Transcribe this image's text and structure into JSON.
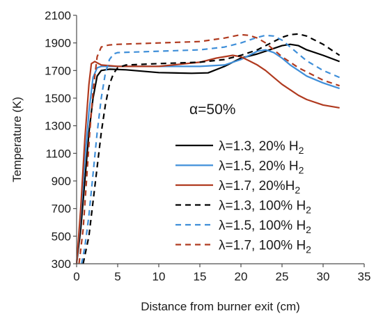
{
  "chart_data": {
    "type": "line",
    "xlabel": "Distance from burner exit (cm)",
    "ylabel": "Temperature (K)",
    "xlim": [
      0,
      35
    ],
    "ylim": [
      300,
      2100
    ],
    "xticks": [
      0,
      5,
      10,
      15,
      20,
      25,
      30,
      35
    ],
    "yticks": [
      300,
      500,
      700,
      900,
      1100,
      1300,
      1500,
      1700,
      1900,
      2100
    ],
    "grid": false,
    "legend_position": "center-right",
    "annotation": "α=50%",
    "series": [
      {
        "name": "λ=1.3, 20% H2",
        "legend": {
          "pre": "λ=1.3, 20% H",
          "sub": "2"
        },
        "color": "#000000",
        "dash": "solid",
        "x": [
          0,
          0.5,
          1,
          1.5,
          2,
          2.5,
          3,
          4,
          6,
          10,
          14,
          16,
          18,
          20,
          22,
          24,
          25,
          26,
          27,
          28,
          30,
          32
        ],
        "y": [
          300,
          550,
          900,
          1250,
          1500,
          1660,
          1700,
          1710,
          1705,
          1685,
          1680,
          1683,
          1730,
          1790,
          1820,
          1860,
          1880,
          1890,
          1880,
          1850,
          1810,
          1765
        ]
      },
      {
        "name": "λ=1.5, 20% H2",
        "legend": {
          "pre": "λ=1.5, 20% H",
          "sub": "2"
        },
        "color": "#3f8fd9",
        "dash": "solid",
        "x": [
          0,
          0.5,
          1,
          1.5,
          2,
          2.5,
          3,
          5,
          10,
          15,
          18,
          20,
          22,
          23,
          24,
          25,
          26,
          27,
          28,
          30,
          32
        ],
        "y": [
          300,
          650,
          1050,
          1400,
          1650,
          1720,
          1730,
          1730,
          1730,
          1730,
          1740,
          1780,
          1840,
          1850,
          1830,
          1790,
          1740,
          1700,
          1660,
          1610,
          1570
        ]
      },
      {
        "name": "λ=1.7, 20%H2",
        "legend": {
          "pre": "λ=1.7, 20%H",
          "sub": "2"
        },
        "color": "#b03a1f",
        "dash": "solid",
        "x": [
          0,
          0.5,
          1,
          1.5,
          1.8,
          2.2,
          3,
          5,
          10,
          15,
          17,
          19,
          20,
          21,
          22,
          23,
          24,
          25,
          26,
          27,
          28,
          30,
          32
        ],
        "y": [
          300,
          700,
          1200,
          1600,
          1750,
          1765,
          1740,
          1730,
          1730,
          1760,
          1790,
          1810,
          1800,
          1770,
          1740,
          1700,
          1650,
          1600,
          1560,
          1520,
          1490,
          1450,
          1430
        ]
      },
      {
        "name": "λ=1.3, 100% H2",
        "legend": {
          "pre": "λ=1.3, 100% H",
          "sub": "2"
        },
        "color": "#000000",
        "dash": "dashed",
        "x": [
          0.8,
          1.5,
          2,
          2.5,
          3,
          3.5,
          4,
          4.5,
          5,
          6,
          10,
          15,
          18,
          20,
          22,
          24,
          25,
          26,
          27,
          28,
          30,
          32
        ],
        "y": [
          300,
          500,
          750,
          1000,
          1250,
          1450,
          1600,
          1680,
          1720,
          1740,
          1750,
          1760,
          1780,
          1810,
          1850,
          1910,
          1940,
          1960,
          1965,
          1950,
          1890,
          1810
        ]
      },
      {
        "name": "λ=1.5, 100% H2",
        "legend": {
          "pre": "λ=1.5, 100% H",
          "sub": "2"
        },
        "color": "#3f8fd9",
        "dash": "dashed",
        "x": [
          0.6,
          1,
          1.5,
          2,
          2.5,
          3,
          3.5,
          4,
          4.5,
          5,
          10,
          15,
          18,
          20,
          22,
          23,
          24,
          25,
          26,
          27,
          28,
          30,
          32
        ],
        "y": [
          300,
          420,
          650,
          950,
          1250,
          1500,
          1680,
          1780,
          1820,
          1830,
          1840,
          1850,
          1870,
          1900,
          1940,
          1955,
          1950,
          1920,
          1870,
          1820,
          1770,
          1700,
          1650
        ]
      },
      {
        "name": "λ=1.7, 100% H2",
        "legend": {
          "pre": "λ=1.7, 100% H",
          "sub": "2"
        },
        "color": "#b03a1f",
        "dash": "dashed",
        "x": [
          0.3,
          0.8,
          1.2,
          1.6,
          2,
          2.5,
          3,
          3.5,
          4,
          5,
          10,
          15,
          18,
          20,
          21,
          22,
          23,
          24,
          25,
          26,
          27,
          28,
          30,
          32
        ],
        "y": [
          300,
          550,
          900,
          1250,
          1550,
          1800,
          1870,
          1880,
          1885,
          1890,
          1900,
          1910,
          1935,
          1960,
          1955,
          1935,
          1900,
          1850,
          1800,
          1760,
          1720,
          1690,
          1630,
          1590
        ]
      }
    ]
  }
}
